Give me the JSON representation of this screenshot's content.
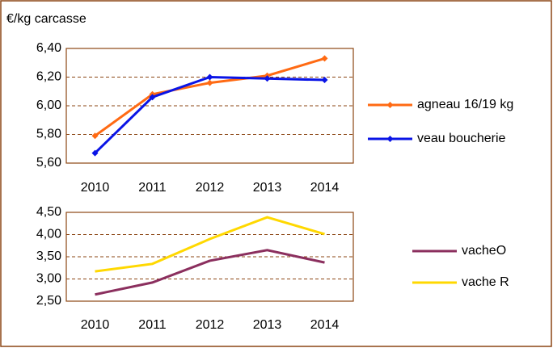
{
  "chart_data": [
    {
      "type": "line",
      "y_label": "€/kg carcasse",
      "categories": [
        "2010",
        "2011",
        "2012",
        "2013",
        "2014"
      ],
      "series": [
        {
          "name": "agneau 16/19 kg",
          "color": "#ff6a13",
          "marker": "diamond",
          "values": [
            5.79,
            6.08,
            6.16,
            6.21,
            6.33
          ]
        },
        {
          "name": "veau boucherie",
          "color": "#0a14e6",
          "marker": "diamond",
          "values": [
            5.67,
            6.06,
            6.2,
            6.19,
            6.18
          ]
        }
      ],
      "ylim": [
        5.6,
        6.4
      ],
      "yticks": [
        {
          "value": 5.6,
          "label": "5,60"
        },
        {
          "value": 5.8,
          "label": "5,80"
        },
        {
          "value": 6.0,
          "label": "6,00"
        },
        {
          "value": 6.2,
          "label": "6,20"
        },
        {
          "value": 6.4,
          "label": "6,40"
        }
      ],
      "grid": true,
      "legend": "right"
    },
    {
      "type": "line",
      "categories": [
        "2010",
        "2011",
        "2012",
        "2013",
        "2014"
      ],
      "series": [
        {
          "name": "vacheO",
          "color": "#8b2f5e",
          "values": [
            2.65,
            2.92,
            3.41,
            3.65,
            3.37
          ]
        },
        {
          "name": "vache R",
          "color": "#ffd800",
          "values": [
            3.17,
            3.34,
            3.9,
            4.39,
            4.01
          ]
        }
      ],
      "ylim": [
        2.5,
        4.5
      ],
      "yticks": [
        {
          "value": 2.5,
          "label": "2,50"
        },
        {
          "value": 3.0,
          "label": "3,00"
        },
        {
          "value": 3.5,
          "label": "3,50"
        },
        {
          "value": 4.0,
          "label": "4,00"
        },
        {
          "value": 4.5,
          "label": "4,50"
        }
      ],
      "grid": true,
      "legend": "right"
    }
  ]
}
